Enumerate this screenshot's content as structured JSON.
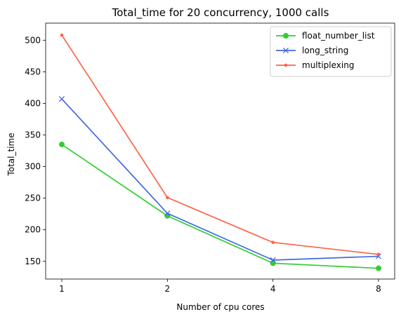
{
  "chart_data": {
    "type": "line",
    "title": "Total_time for 20 concurrency, 1000 calls",
    "xlabel": "Number of cpu cores",
    "ylabel": "Total_time",
    "categories": [
      "1",
      "2",
      "4",
      "8"
    ],
    "ylim": [
      122,
      527
    ],
    "yticks": [
      150,
      200,
      250,
      300,
      350,
      400,
      450,
      500
    ],
    "grid": false,
    "legend_position": "top-right",
    "series": [
      {
        "name": "float_number_list",
        "color": "#32cd32",
        "marker": "circle",
        "values": [
          335,
          222,
          147,
          139
        ]
      },
      {
        "name": "long_string",
        "color": "#4169e1",
        "marker": "x",
        "values": [
          407,
          226,
          152,
          158
        ]
      },
      {
        "name": "multiplexing",
        "color": "#ff6347",
        "marker": "point",
        "values": [
          508,
          251,
          180,
          161
        ]
      }
    ]
  }
}
